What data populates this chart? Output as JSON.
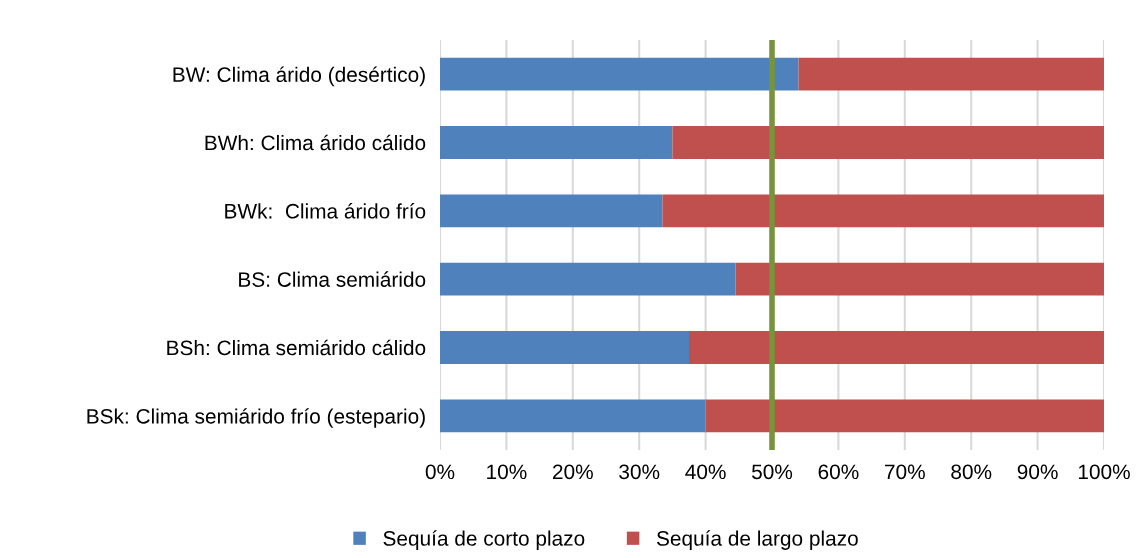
{
  "chart_data": {
    "type": "bar",
    "orientation": "horizontal",
    "stacked": true,
    "categories": [
      "BW: Clima árido (desértico)",
      "BWh: Clima árido cálido",
      "BWk:  Clima árido frío",
      "BS: Clima semiárido",
      "BSh: Clima semiárido cálido",
      "BSk: Clima semiárido frío (estepario)"
    ],
    "series": [
      {
        "name": "Sequía de corto plazo",
        "color": "#4f81bd",
        "values": [
          54,
          35,
          33.5,
          44.5,
          37.5,
          40
        ]
      },
      {
        "name": "Sequía de largo plazo",
        "color": "#c0504d",
        "values": [
          46,
          65,
          66.5,
          55.5,
          62.5,
          60
        ]
      }
    ],
    "xlim": [
      0,
      100
    ],
    "xticks": [
      {
        "value": 0,
        "label": "0%"
      },
      {
        "value": 10,
        "label": "10%"
      },
      {
        "value": 20,
        "label": "20%"
      },
      {
        "value": 30,
        "label": "30%"
      },
      {
        "value": 40,
        "label": "40%"
      },
      {
        "value": 50,
        "label": "50%"
      },
      {
        "value": 60,
        "label": "60%"
      },
      {
        "value": 70,
        "label": "70%"
      },
      {
        "value": 80,
        "label": "80%"
      },
      {
        "value": 90,
        "label": "90%"
      },
      {
        "value": 100,
        "label": "100%"
      }
    ],
    "grid": "x",
    "legend": "bottom",
    "ref_lines": [
      {
        "axis": "x",
        "value": 50,
        "color": "#77933c"
      }
    ]
  }
}
